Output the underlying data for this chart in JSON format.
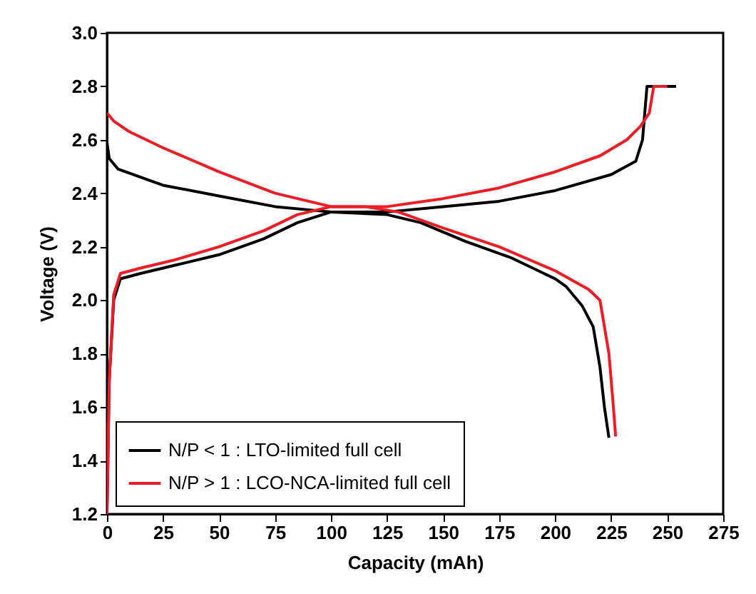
{
  "chart_data": {
    "type": "line",
    "xlabel": "Capacity (mAh)",
    "ylabel": "Voltage (V)",
    "xlim": [
      0,
      275
    ],
    "xticks": [
      0,
      25,
      50,
      75,
      100,
      125,
      150,
      175,
      200,
      225,
      250,
      275
    ],
    "ylim": [
      1.2,
      3.0
    ],
    "yticks": [
      1.2,
      1.4,
      1.6,
      1.8,
      {
        "value": 2,
        "label": "2.0"
      },
      2.2,
      2.4,
      2.6,
      2.8,
      {
        "value": 3,
        "label": "3.0"
      }
    ],
    "legend": "bottom left",
    "marker": "none",
    "line_style": "solid",
    "series": [
      {
        "name": "N/P < 1 : LTO-limited full cell",
        "color": "#000000",
        "x": [
          0,
          1,
          3,
          6,
          15,
          30,
          50,
          70,
          85,
          100,
          125,
          140,
          160,
          180,
          200,
          205,
          212,
          217,
          220,
          222,
          224
        ],
        "values": [
          1.2,
          1.7,
          2.0,
          2.08,
          2.1,
          2.13,
          2.17,
          2.23,
          2.29,
          2.33,
          2.32,
          2.29,
          2.22,
          2.16,
          2.08,
          2.05,
          1.98,
          1.9,
          1.75,
          1.6,
          1.485
        ]
      },
      {
        "color": "#000000",
        "x": [
          0,
          1,
          5,
          25,
          50,
          75,
          100,
          125,
          150,
          175,
          200,
          225,
          236,
          239,
          240,
          241,
          254
        ],
        "values": [
          2.59,
          2.53,
          2.49,
          2.43,
          2.39,
          2.35,
          2.33,
          2.33,
          2.35,
          2.37,
          2.41,
          2.47,
          2.52,
          2.6,
          2.7,
          2.8,
          2.8
        ]
      },
      {
        "name": "N/P > 1 : LCO-NCA-limited full cell",
        "color": "#ee1c25",
        "x": [
          0,
          1,
          3,
          6,
          15,
          30,
          50,
          70,
          85,
          100,
          115,
          130,
          150,
          175,
          200,
          215,
          220,
          224,
          226,
          227
        ],
        "values": [
          1.2,
          1.7,
          2.02,
          2.1,
          2.12,
          2.15,
          2.2,
          2.26,
          2.32,
          2.35,
          2.35,
          2.33,
          2.27,
          2.2,
          2.11,
          2.04,
          2.0,
          1.8,
          1.6,
          1.49
        ]
      },
      {
        "color": "#ee1c25",
        "x": [
          0,
          3,
          10,
          25,
          50,
          75,
          100,
          125,
          150,
          175,
          200,
          220,
          232,
          238,
          242,
          244,
          250
        ],
        "values": [
          2.7,
          2.67,
          2.63,
          2.57,
          2.48,
          2.4,
          2.35,
          2.35,
          2.38,
          2.42,
          2.48,
          2.54,
          2.6,
          2.65,
          2.7,
          2.8,
          2.8
        ]
      }
    ]
  }
}
